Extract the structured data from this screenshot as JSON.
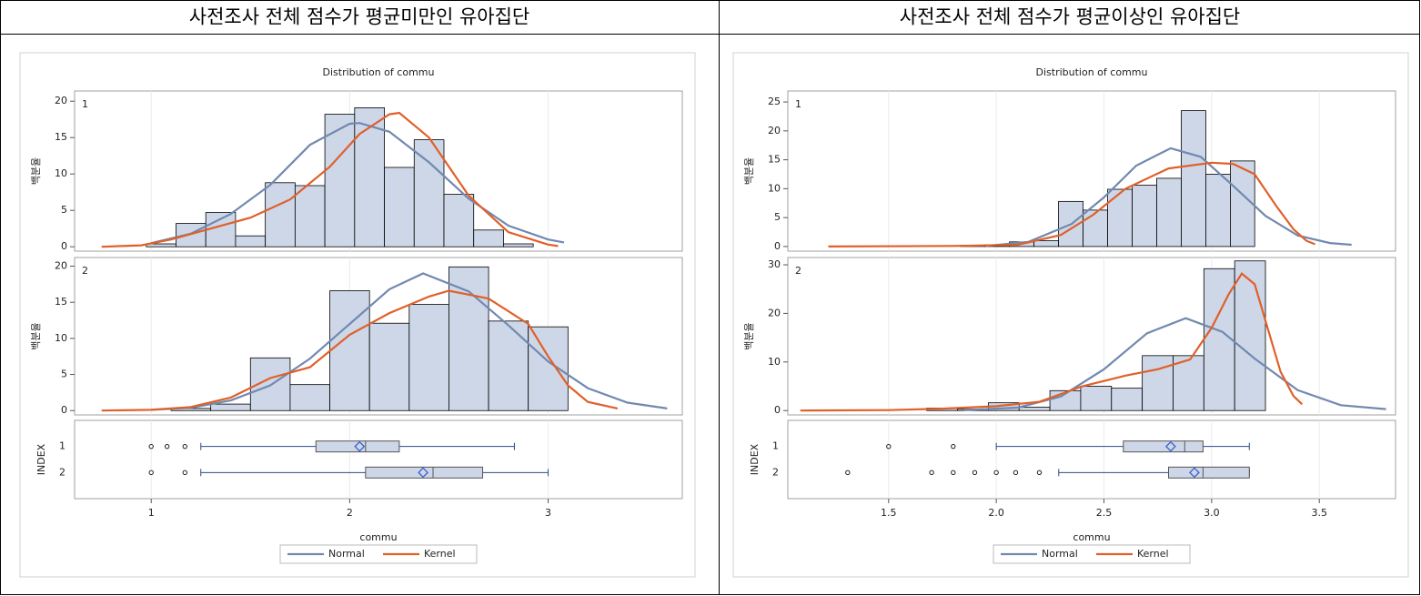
{
  "table": {
    "headers": [
      "사전조사 전체 점수가 평균미만인 유아집단",
      "사전조사 전체 점수가 평균이상인 유아집단"
    ]
  },
  "chart_data": [
    {
      "type": "histogram",
      "title": "Distribution of commu",
      "x_label": "commu",
      "y_label": "백분율",
      "xlim": [
        0.614,
        3.676
      ],
      "xticks": [
        1,
        2,
        3
      ],
      "grid": true,
      "bar_color": "#cdd7e8",
      "series": [
        {
          "name": "Normal",
          "color": "#7189b0"
        },
        {
          "name": "Kernel",
          "color": "#e0602a"
        }
      ],
      "panels": [
        {
          "label": "1",
          "ylim": [
            -0.6,
            21.4
          ],
          "yticks": [
            0,
            5,
            10,
            15,
            20
          ],
          "bins": [
            0.975,
            1.125,
            1.275,
            1.425,
            1.575,
            1.725,
            1.875,
            2.025,
            2.175,
            2.325,
            2.475,
            2.625,
            2.775,
            2.925
          ],
          "values": [
            0.4,
            3.2,
            4.7,
            1.5,
            8.8,
            8.4,
            18.2,
            19.1,
            10.9,
            14.7,
            7.2,
            2.3,
            0.4
          ],
          "curves": [
            {
              "x": [
                1.0,
                1.2,
                1.4,
                1.6,
                1.8,
                2.0,
                2.05,
                2.2,
                2.4,
                2.6,
                2.8,
                3.0,
                3.08
              ],
              "values": [
                0.5,
                1.8,
                4.5,
                8.5,
                14.0,
                16.9,
                17.0,
                15.8,
                11.6,
                6.6,
                2.9,
                1.0,
                0.6
              ]
            },
            {
              "x": [
                0.75,
                0.95,
                1.1,
                1.3,
                1.5,
                1.7,
                1.9,
                2.05,
                2.2,
                2.25,
                2.4,
                2.6,
                2.8,
                3.0,
                3.05
              ],
              "values": [
                0,
                0.2,
                1.0,
                2.5,
                4.0,
                6.5,
                11,
                15.5,
                18.2,
                18.4,
                15,
                7,
                2.0,
                0.3,
                0.1
              ]
            }
          ]
        },
        {
          "label": "2",
          "ylim": [
            -0.6,
            21.2
          ],
          "yticks": [
            0,
            5,
            10,
            15,
            20
          ],
          "bins": [
            1.1,
            1.3,
            1.5,
            1.7,
            1.9,
            2.1,
            2.3,
            2.5,
            2.7,
            2.9,
            3.1
          ],
          "values": [
            0.3,
            0.9,
            7.3,
            3.6,
            16.6,
            12.1,
            14.7,
            19.9,
            12.4,
            11.6
          ],
          "curves": [
            {
              "x": [
                1.0,
                1.2,
                1.4,
                1.6,
                1.8,
                2.0,
                2.2,
                2.37,
                2.6,
                2.8,
                3.0,
                3.2,
                3.4,
                3.6
              ],
              "values": [
                0.1,
                0.4,
                1.4,
                3.5,
                7.2,
                12.0,
                16.8,
                19.0,
                16.5,
                11.8,
                6.8,
                3.1,
                1.1,
                0.3
              ]
            },
            {
              "x": [
                0.75,
                1.0,
                1.2,
                1.4,
                1.6,
                1.8,
                2.0,
                2.2,
                2.4,
                2.5,
                2.7,
                2.9,
                3.0,
                3.1,
                3.2,
                3.35
              ],
              "values": [
                0,
                0.1,
                0.5,
                1.8,
                4.5,
                6.0,
                10.5,
                13.5,
                15.8,
                16.6,
                15.5,
                12,
                7.5,
                3.5,
                1.2,
                0.3
              ]
            }
          ]
        }
      ],
      "boxplot": {
        "y_label": "INDEX",
        "categories": [
          "1",
          "2"
        ],
        "boxes": [
          {
            "whisker_low": 1.25,
            "q1": 1.83,
            "median": 2.08,
            "q3": 2.25,
            "whisker_high": 2.83,
            "mean": 2.05,
            "outliers": [
              1.0,
              1.08,
              1.17
            ]
          },
          {
            "whisker_low": 1.25,
            "q1": 2.08,
            "median": 2.42,
            "q3": 2.67,
            "whisker_high": 3.0,
            "mean": 2.37,
            "outliers": [
              1.0,
              1.17
            ]
          }
        ]
      }
    },
    {
      "type": "histogram",
      "title": "Distribution of commu",
      "x_label": "commu",
      "y_label": "백분율",
      "xlim": [
        1.032,
        3.854
      ],
      "xticks": [
        1.5,
        {
          "value": 2,
          "label": "2.0"
        },
        2.5,
        {
          "value": 3,
          "label": "3.0"
        },
        3.5
      ],
      "grid": true,
      "bar_color": "#cdd7e8",
      "series": [
        {
          "name": "Normal",
          "color": "#7189b0"
        },
        {
          "name": "Kernel",
          "color": "#e0602a"
        }
      ],
      "panels": [
        {
          "label": "1",
          "ylim": [
            -0.8,
            26.9
          ],
          "yticks": [
            0,
            5,
            10,
            15,
            20,
            25
          ],
          "bins": [
            1.833,
            1.947,
            2.061,
            2.175,
            2.289,
            2.403,
            2.517,
            2.631,
            2.745,
            2.859,
            2.973,
            3.087,
            3.2
          ],
          "values": [
            0.2,
            0.3,
            0.8,
            1.0,
            7.8,
            6.3,
            9.9,
            10.6,
            11.8,
            23.5,
            12.5,
            14.8
          ],
          "curves": [
            {
              "x": [
                1.95,
                2.15,
                2.35,
                2.5,
                2.65,
                2.81,
                2.95,
                3.1,
                3.25,
                3.4,
                3.55,
                3.65
              ],
              "values": [
                0.1,
                0.8,
                3.9,
                8.5,
                14,
                17,
                15.5,
                10.5,
                5.3,
                1.9,
                0.6,
                0.3
              ]
            },
            {
              "x": [
                1.22,
                1.8,
                2.1,
                2.3,
                2.45,
                2.6,
                2.8,
                3.0,
                3.1,
                3.2,
                3.3,
                3.38,
                3.44,
                3.48
              ],
              "values": [
                0,
                0.1,
                0.3,
                2,
                5.5,
                10,
                13.5,
                14.5,
                14.3,
                12.5,
                7,
                3,
                1,
                0.4
              ]
            }
          ]
        },
        {
          "label": "2",
          "ylim": [
            -0.9,
            31.5
          ],
          "yticks": [
            0,
            10,
            20,
            30
          ],
          "bins": [
            1.677,
            1.82,
            1.963,
            2.106,
            2.249,
            2.392,
            2.535,
            2.678,
            2.821,
            2.964,
            3.107,
            3.25
          ],
          "values": [
            0.5,
            0.3,
            1.6,
            0.7,
            4.1,
            5.0,
            4.6,
            11.3,
            11.3,
            29.2,
            30.8
          ],
          "curves": [
            {
              "x": [
                1.85,
                2.1,
                2.3,
                2.5,
                2.7,
                2.88,
                3.05,
                3.2,
                3.4,
                3.6,
                3.81
              ],
              "values": [
                0.1,
                0.6,
                2.9,
                8.5,
                15.9,
                19,
                16.2,
                10.7,
                4.2,
                1.1,
                0.3
              ]
            },
            {
              "x": [
                1.09,
                1.5,
                1.75,
                2.0,
                2.2,
                2.4,
                2.6,
                2.75,
                2.9,
                3.0,
                3.08,
                3.14,
                3.2,
                3.26,
                3.32,
                3.38,
                3.42
              ],
              "values": [
                0,
                0.1,
                0.4,
                0.9,
                1.8,
                5,
                7.2,
                8.5,
                10.5,
                17,
                24,
                28.2,
                26,
                17,
                8,
                3,
                1.3
              ]
            }
          ]
        }
      ],
      "boxplot": {
        "y_label": "INDEX",
        "categories": [
          "1",
          "2"
        ],
        "boxes": [
          {
            "whisker_low": 2.0,
            "q1": 2.59,
            "median": 2.875,
            "q3": 2.96,
            "whisker_high": 3.175,
            "mean": 2.81,
            "outliers": [
              1.5,
              1.8
            ]
          },
          {
            "whisker_low": 2.29,
            "q1": 2.8,
            "median": 2.96,
            "q3": 3.175,
            "whisker_high": 3.175,
            "mean": 2.92,
            "outliers": [
              1.31,
              1.7,
              1.8,
              1.9,
              2.0,
              2.09,
              2.2
            ]
          }
        ]
      }
    }
  ]
}
